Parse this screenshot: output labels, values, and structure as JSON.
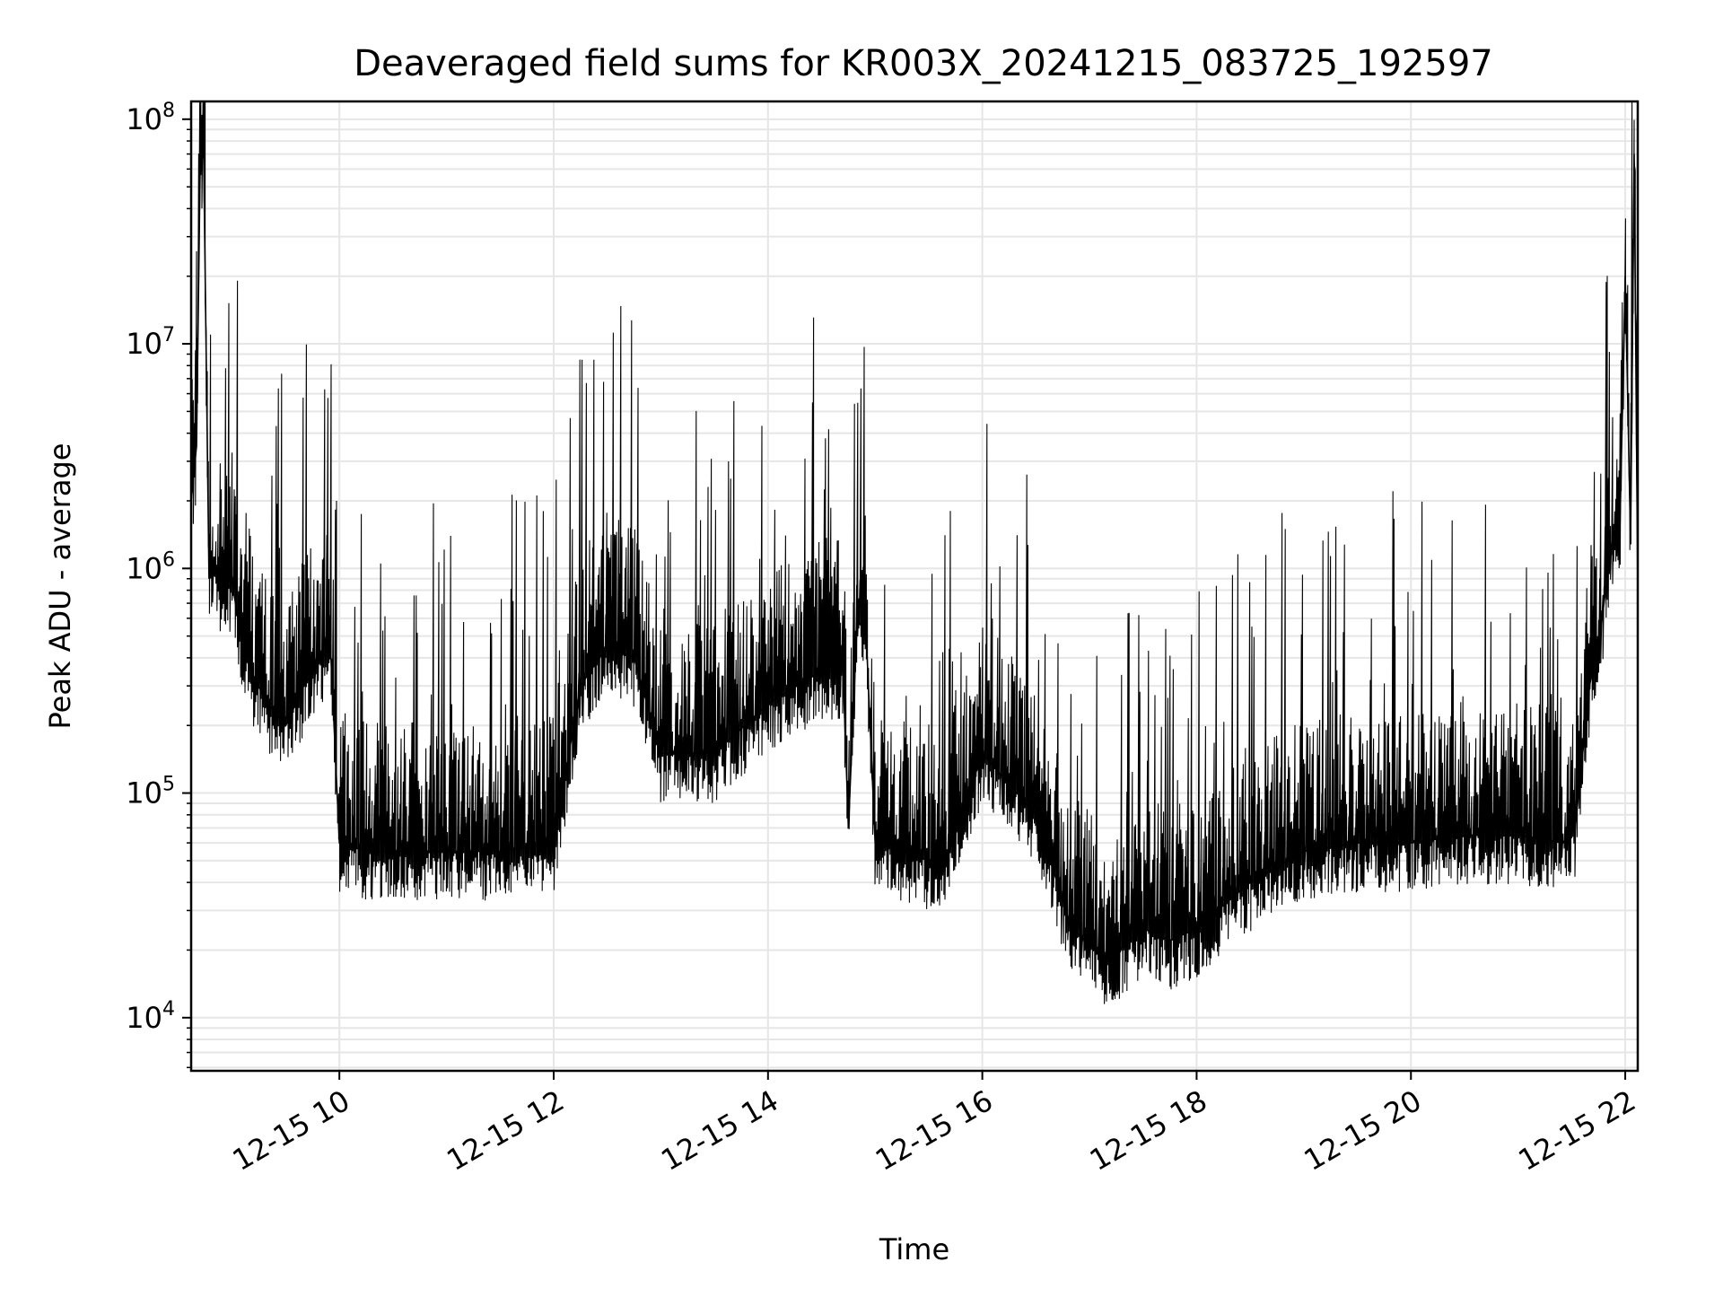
{
  "chart_data": {
    "type": "line",
    "title": "Deaveraged field sums for KR003X_20241215_083725_192597",
    "xlabel": "Time",
    "ylabel": "Peak ADU - average",
    "y_scale": "log",
    "ylim": [
      5800,
      120000000
    ],
    "xlim": [
      "2024-12-15 08:37",
      "2024-12-15 22:07"
    ],
    "x_ticks": [
      {
        "label": "12-15 10",
        "value": "2024-12-15 10:00"
      },
      {
        "label": "12-15 12",
        "value": "2024-12-15 12:00"
      },
      {
        "label": "12-15 14",
        "value": "2024-12-15 14:00"
      },
      {
        "label": "12-15 16",
        "value": "2024-12-15 16:00"
      },
      {
        "label": "12-15 18",
        "value": "2024-12-15 18:00"
      },
      {
        "label": "12-15 20",
        "value": "2024-12-15 20:00"
      },
      {
        "label": "12-15 22",
        "value": "2024-12-15 22:00"
      }
    ],
    "y_ticks": [
      {
        "base": "10",
        "exp": "4",
        "value": 10000
      },
      {
        "base": "10",
        "exp": "5",
        "value": 100000
      },
      {
        "base": "10",
        "exp": "6",
        "value": 1000000
      },
      {
        "base": "10",
        "exp": "7",
        "value": 10000000
      },
      {
        "base": "10",
        "exp": "8",
        "value": 100000000
      }
    ],
    "grid": true,
    "line_color": "#000000",
    "grid_color": "#e6e6e6",
    "series": [
      {
        "x": [
          "2024-12-15 08:37",
          "2024-12-15 08:40",
          "2024-12-15 08:42",
          "2024-12-15 08:44",
          "2024-12-15 08:47",
          "2024-12-15 08:50",
          "2024-12-15 08:55",
          "2024-12-15 09:00",
          "2024-12-15 09:05",
          "2024-12-15 09:10",
          "2024-12-15 09:20",
          "2024-12-15 09:30",
          "2024-12-15 09:40",
          "2024-12-15 09:50",
          "2024-12-15 09:55",
          "2024-12-15 10:00",
          "2024-12-15 10:15",
          "2024-12-15 10:30",
          "2024-12-15 11:00",
          "2024-12-15 11:30",
          "2024-12-15 12:00",
          "2024-12-15 12:15",
          "2024-12-15 12:30",
          "2024-12-15 12:45",
          "2024-12-15 13:00",
          "2024-12-15 13:30",
          "2024-12-15 14:00",
          "2024-12-15 14:30",
          "2024-12-15 14:42",
          "2024-12-15 14:45",
          "2024-12-15 14:50",
          "2024-12-15 14:55",
          "2024-12-15 15:00",
          "2024-12-15 15:30",
          "2024-12-15 15:40",
          "2024-12-15 16:00",
          "2024-12-15 16:30",
          "2024-12-15 16:50",
          "2024-12-15 17:10",
          "2024-12-15 17:30",
          "2024-12-15 17:45",
          "2024-12-15 18:00",
          "2024-12-15 18:30",
          "2024-12-15 19:00",
          "2024-12-15 19:30",
          "2024-12-15 20:00",
          "2024-12-15 20:30",
          "2024-12-15 21:00",
          "2024-12-15 21:25",
          "2024-12-15 21:32",
          "2024-12-15 21:40",
          "2024-12-15 21:47",
          "2024-12-15 21:52",
          "2024-12-15 21:57",
          "2024-12-15 22:00",
          "2024-12-15 22:03",
          "2024-12-15 22:05",
          "2024-12-15 22:07"
        ],
        "y": [
          2000000,
          3500000,
          60000000,
          72000000,
          900000,
          1000000,
          800000,
          850000,
          500000,
          350000,
          250000,
          200000,
          300000,
          400000,
          450000,
          60000,
          55000,
          55000,
          55000,
          55000,
          60000,
          300000,
          450000,
          400000,
          150000,
          150000,
          250000,
          350000,
          350000,
          70000,
          600000,
          500000,
          60000,
          50000,
          50000,
          150000,
          80000,
          25000,
          18000,
          25000,
          22000,
          25000,
          40000,
          55000,
          60000,
          60000,
          65000,
          65000,
          60000,
          70000,
          300000,
          600000,
          1200000,
          1500000,
          20000000,
          1300000,
          70000000,
          800000
        ]
      }
    ]
  }
}
